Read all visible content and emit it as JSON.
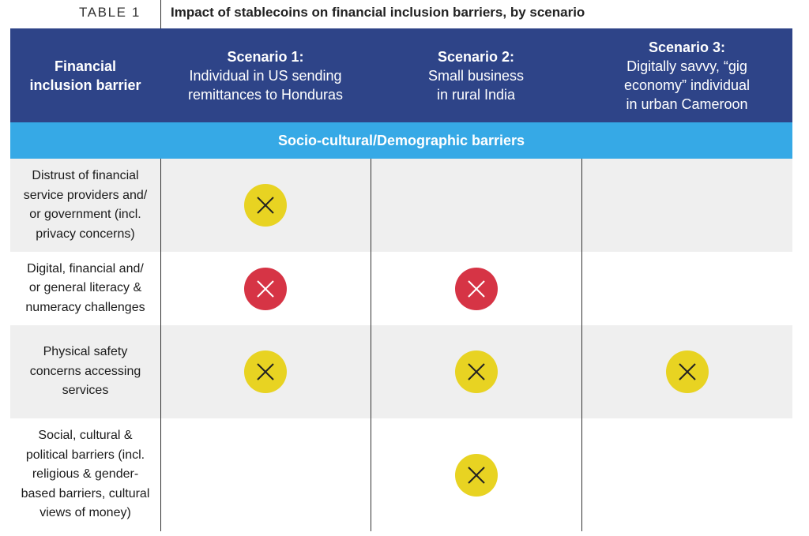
{
  "table_label": "TABLE 1",
  "title": "Impact of stablecoins on financial inclusion barriers, by scenario",
  "header": {
    "barrier_col": "Financial\ninclusion barrier",
    "scenarios": [
      {
        "name": "Scenario 1:",
        "desc": "Individual in US sending\nremittances to Honduras"
      },
      {
        "name": "Scenario 2:",
        "desc": "Small business\nin rural India"
      },
      {
        "name": "Scenario 3:",
        "desc": "Digitally savvy, “gig\neconomy” individual\nin urban Cameroon"
      }
    ]
  },
  "section": "Socio-cultural/Demographic barriers",
  "colors": {
    "header_bg": "#2e4488",
    "section_bg": "#36a9e6",
    "yellow": "#e8d322",
    "red": "#d63445"
  },
  "rows": [
    {
      "barrier": "Distrust of financial\nservice providers and/\nor government (incl.\nprivacy concerns)",
      "marks": [
        "yellow",
        "",
        ""
      ]
    },
    {
      "barrier": "Digital, financial and/\nor general literacy &\nnumeracy challenges",
      "marks": [
        "red",
        "red",
        ""
      ]
    },
    {
      "barrier": "Physical safety\nconcerns accessing\nservices",
      "marks": [
        "yellow",
        "yellow",
        "yellow"
      ]
    },
    {
      "barrier": "Social, cultural &\npolitical barriers (incl.\nreligious & gender-\nbased barriers, cultural\nviews of money)",
      "marks": [
        "",
        "yellow",
        ""
      ]
    }
  ]
}
